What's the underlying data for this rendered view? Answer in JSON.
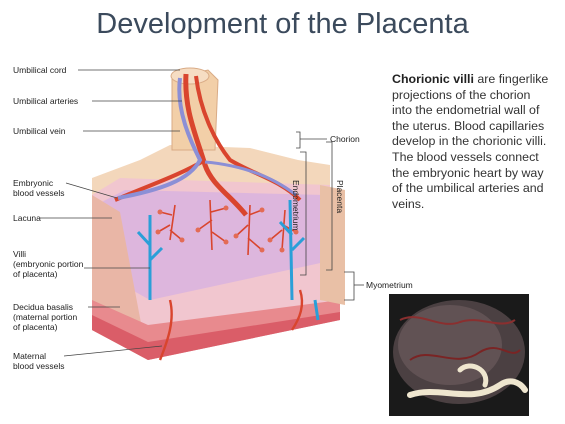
{
  "title": "Development of the Placenta",
  "labels": {
    "umbilical_cord": "Umbilical cord",
    "umbilical_arteries": "Umbilical arteries",
    "umbilical_vein": "Umbilical vein",
    "embryonic_vessels": "Embryonic\nblood vessels",
    "lacuna": "Lacuna",
    "villi": "Villi\n(embryonic portion\nof placenta)",
    "decidua_basalis": "Decidua basalis\n(maternal portion\nof placenta)",
    "maternal_vessels": "Maternal\nblood vessels",
    "chorion": "Chorion",
    "endometrium": "Endometrium",
    "placenta": "Placenta",
    "myometrium": "Myometrium"
  },
  "description": {
    "term": "Chorionic villi",
    "text": " are fingerlike projections of the chorion into the endometrial wall of the uterus.  Blood capillaries develop in the chorionic villi.  The blood vessels connect the embryonic heart by way of the umbilical arteries and veins."
  },
  "colors": {
    "title": "#3b4a5c",
    "artery": "#d9452e",
    "vein": "#8c8fd6",
    "maternal_vein": "#2a9fd8",
    "tissue_pink": "#f1c6cf",
    "tissue_beige": "#f2d3b3",
    "lacuna_purple": "#c9a3d3"
  }
}
